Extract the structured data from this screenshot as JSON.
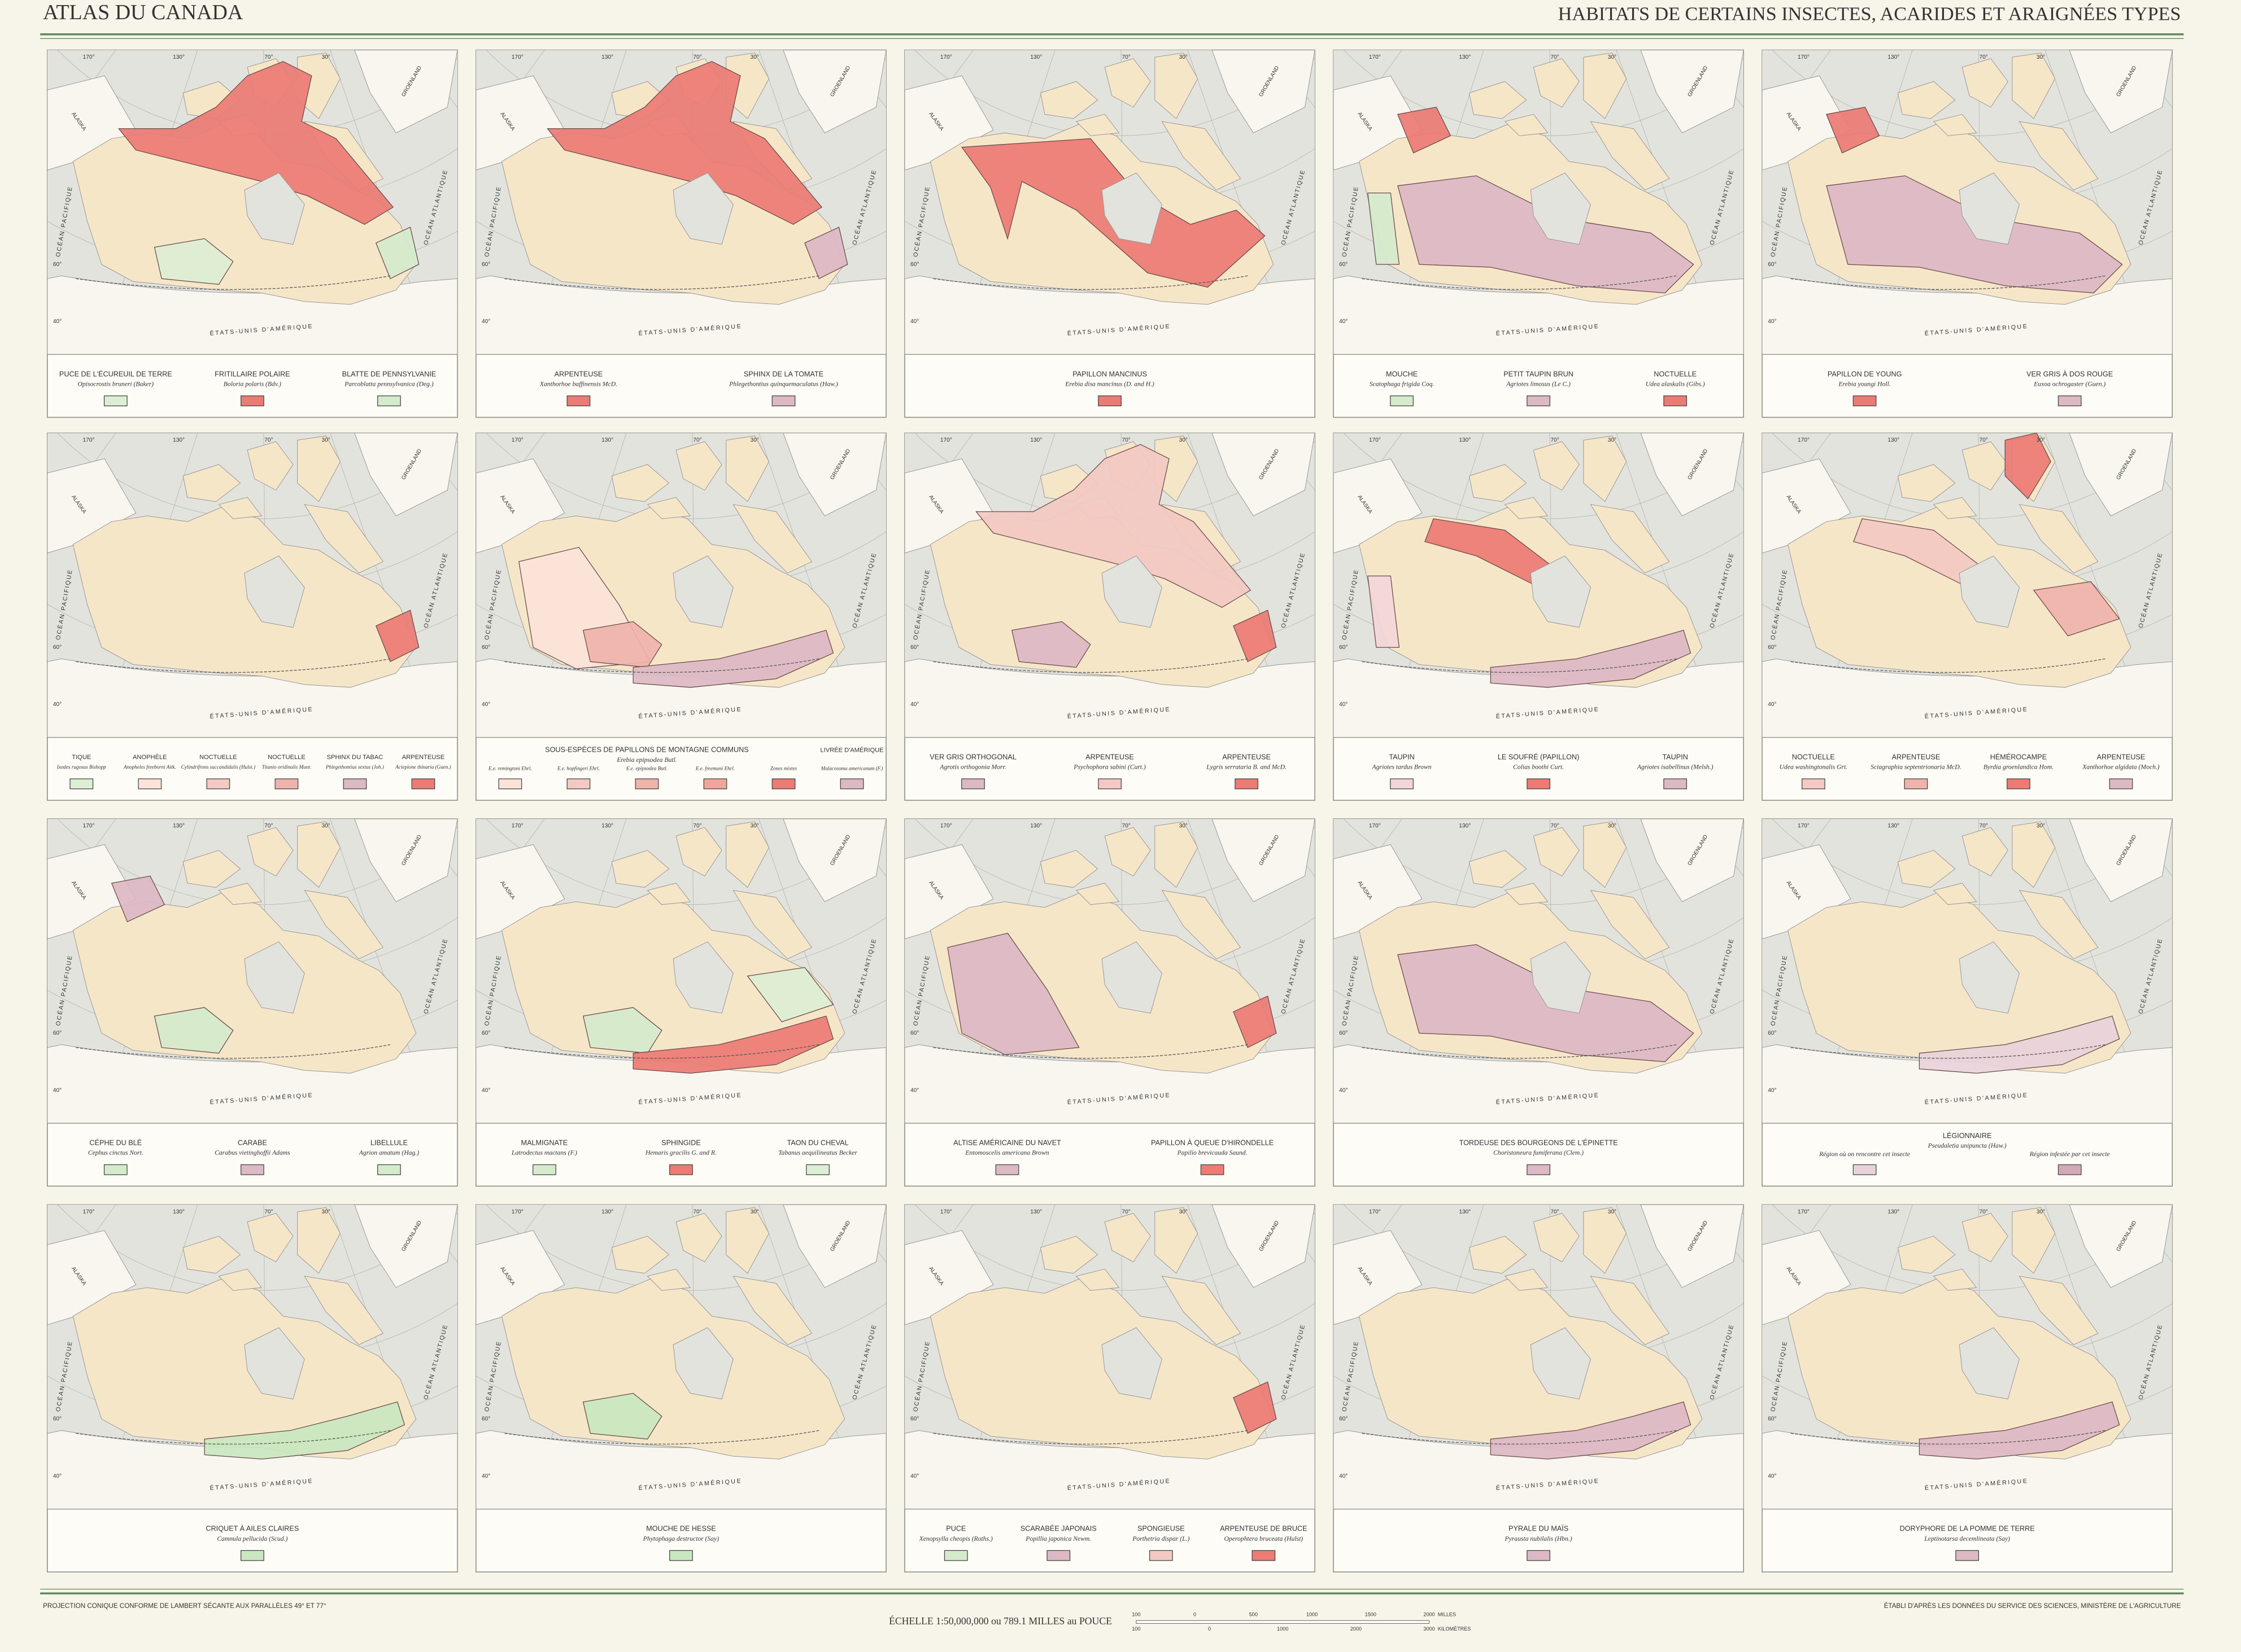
{
  "header": {
    "left": "ATLAS DU CANADA",
    "title": "HABITATS DE CERTAINS INSECTES, ACARIDES ET ARAIGNÉES TYPES"
  },
  "map_labels": {
    "pacific": "OCÉAN PACIFIQUE",
    "atlantic": "OCÉAN ATLANTIQUE",
    "usa": "ÉTATS-UNIS D'AMÉRIQUE",
    "greenland": "GROENLAND",
    "alaska": "ALASKA",
    "meridians": [
      "170°",
      "130°",
      "70°",
      "30°"
    ],
    "parallels": [
      "60°",
      "40°"
    ]
  },
  "panels": [
    {
      "entries": [
        {
          "name": "PUCE DE L'ÉCUREUIL DE TERRE",
          "latin": "Opisocrostis bruneri (Baker)",
          "color": "#dcefd4"
        },
        {
          "name": "FRITILLAIRE POLAIRE",
          "latin": "Boloria polaris (Bdv.)",
          "color": "#ec7b74"
        },
        {
          "name": "BLATTE DE PENNSYLVANIE",
          "latin": "Parcoblatta pennsylvanica (Deg.)",
          "color": "#d4ebcc"
        }
      ]
    },
    {
      "entries": [
        {
          "name": "ARPENTEUSE",
          "latin": "Xanthorhoe baffinensis McD.",
          "color": "#ec7b74"
        },
        {
          "name": "SPHINX DE LA TOMATE",
          "latin": "Phlegethontius quinquemaculatus (Haw.)",
          "color": "#dcb9c4"
        }
      ]
    },
    {
      "entries": [
        {
          "name": "PAPILLON MANCINUS",
          "latin": "Erebia disa mancinus (D. and H.)",
          "color": "#ec7b74"
        }
      ]
    },
    {
      "entries": [
        {
          "name": "MOUCHE",
          "latin": "Scatophaga frigida Coq.",
          "color": "#d4ebcc"
        },
        {
          "name": "PETIT TAUPIN BRUN",
          "latin": "Agriotes limosus (Le C.)",
          "color": "#dcb9c4"
        },
        {
          "name": "NOCTUELLE",
          "latin": "Udea alaskalis (Gibs.)",
          "color": "#ec7b74"
        }
      ]
    },
    {
      "entries": [
        {
          "name": "PAPILLON DE YOUNG",
          "latin": "Erebia youngi Holl.",
          "color": "#ec7b74"
        },
        {
          "name": "VER GRIS À DOS ROUGE",
          "latin": "Euxoa ochrogaster (Guen.)",
          "color": "#dcb9c4"
        }
      ]
    },
    {
      "entries": [
        {
          "name": "TIQUE",
          "latin": "Ixodes rugosus Bishopp",
          "color": "#dcefd4"
        },
        {
          "name": "ANOPHÈLE",
          "latin": "Anopheles freeborni Aitk.",
          "color": "#fbe3d8"
        },
        {
          "name": "NOCTUELLE",
          "latin": "Cylindrifrons succandidalis (Hulst.)",
          "color": "#f3c9c2"
        },
        {
          "name": "NOCTUELLE",
          "latin": "Titanio oridinalis Munr.",
          "color": "#efb3ab"
        },
        {
          "name": "SPHINX DU TABAC",
          "latin": "Phlegethontius sextus (Joh.)",
          "color": "#dcb9c4"
        },
        {
          "name": "ARPENTEUSE",
          "latin": "Aciepione thinaria (Guen.)",
          "color": "#ec7b74"
        }
      ]
    },
    {
      "heading": {
        "name": "SOUS-ESPÈCES DE PAPILLONS DE MONTAGNE COMMUNS",
        "latin": "Erebia epipsodea Butl."
      },
      "entries": [
        {
          "latin": "E.e. remingtoni Ehrl.",
          "color": "#fbe3d8"
        },
        {
          "latin": "E.e. hopfingeri Ehrl.",
          "color": "#f3c9c2"
        },
        {
          "latin": "E.e. epipsodea Butl.",
          "color": "#efb3ab"
        },
        {
          "latin": "E.e. freemani Ehrl.",
          "color": "#f0a59c"
        },
        {
          "latin": "Zones mixtes",
          "color": "#ec7b74"
        },
        {
          "name": "LIVRÉE D'AMÉRIQUE",
          "latin": "Malacosoma americanum (F.)",
          "color": "#dcb9c4"
        }
      ]
    },
    {
      "entries": [
        {
          "name": "VER GRIS ORTHOGONAL",
          "latin": "Agrotis orthogonia Morr.",
          "color": "#dcb9c4"
        },
        {
          "name": "ARPENTEUSE",
          "latin": "Psychophora sabini (Curt.)",
          "color": "#f3c9c2"
        },
        {
          "name": "ARPENTEUSE",
          "latin": "Lygris serrataria B. and McD.",
          "color": "#ec7b74"
        }
      ]
    },
    {
      "entries": [
        {
          "name": "TAUPIN",
          "latin": "Agriotes tardus Brown",
          "color": "#f3d6d8"
        },
        {
          "name": "LE SOUFRÉ (PAPILLON)",
          "latin": "Colias boothi Curt.",
          "color": "#ec7b74"
        },
        {
          "name": "TAUPIN",
          "latin": "Agriotes isabellinus (Melsh.)",
          "color": "#dcb9c4"
        }
      ]
    },
    {
      "entries": [
        {
          "name": "NOCTUELLE",
          "latin": "Udea washingtonalis Grt.",
          "color": "#f3c9c2"
        },
        {
          "name": "ARPENTEUSE",
          "latin": "Sciagraphia septentrionaria McD.",
          "color": "#efb3ab"
        },
        {
          "name": "HÉMÉROCAMPE",
          "latin": "Byrdia groenlandica Hom.",
          "color": "#ec7b74"
        },
        {
          "name": "ARPENTEUSE",
          "latin": "Xanthorhoe algidata (Moch.)",
          "color": "#dcb9c4"
        }
      ]
    },
    {
      "entries": [
        {
          "name": "CÉPHE DU BLÉ",
          "latin": "Cephus cinctus Nort.",
          "color": "#d4ebcc"
        },
        {
          "name": "CARABE",
          "latin": "Carabus vietinghoffii Adams",
          "color": "#dcb9c4"
        },
        {
          "name": "LIBELLULE",
          "latin": "Agrion amatum (Hag.)",
          "color": "#d4ebcc"
        }
      ]
    },
    {
      "entries": [
        {
          "name": "MALMIGNATE",
          "latin": "Latrodectus mactans (F.)",
          "color": "#d4ebcc"
        },
        {
          "name": "SPHINGIDE",
          "latin": "Hemaris gracilis G. and R.",
          "color": "#ec7b74"
        },
        {
          "name": "TAON DU CHEVAL",
          "latin": "Tabanus aequilineatus Becker",
          "color": "#dcefd4"
        }
      ]
    },
    {
      "entries": [
        {
          "name": "ALTISE AMÉRICAINE DU NAVET",
          "latin": "Entomoscelis americana Brown",
          "color": "#dcb9c4"
        },
        {
          "name": "PAPILLON À QUEUE D'HIRONDELLE",
          "latin": "Papilio brevicauda Saund.",
          "color": "#ec7b74"
        }
      ]
    },
    {
      "entries": [
        {
          "name": "TORDEUSE DES BOURGEONS DE L'ÉPINETTE",
          "latin": "Choristoneura fumiferana (Clem.)",
          "color": "#dcb9c4"
        }
      ]
    },
    {
      "heading": {
        "name": "LÉGIONNAIRE",
        "latin": "Pseudaletia unipuncta (Haw.)"
      },
      "entries": [
        {
          "latin": "Région où on rencontre cet insecte",
          "color": "#e8d3da"
        },
        {
          "latin": "Région infestée par cet insecte",
          "color": "#d2a9b7"
        }
      ]
    },
    {
      "entries": [
        {
          "name": "CRIQUET À AILES CLAIRES",
          "latin": "Camnula pellucida (Scud.)",
          "color": "#c9e7c0"
        }
      ]
    },
    {
      "entries": [
        {
          "name": "MOUCHE DE HESSE",
          "latin": "Phytophaga destructor (Say)",
          "color": "#c9e7c0"
        }
      ]
    },
    {
      "entries": [
        {
          "name": "PUCE",
          "latin": "Xenopsylla cheopis (Roths.)",
          "color": "#d4ebcc"
        },
        {
          "name": "SCARABÉE JAPONAIS",
          "latin": "Popillia japonica Newm.",
          "color": "#dcb9c4"
        },
        {
          "name": "SPONGIEUSE",
          "latin": "Porthetria dispar (L.)",
          "color": "#f3c9c2"
        },
        {
          "name": "ARPENTEUSE DE BRUCE",
          "latin": "Operophtera bruceata (Hulst)",
          "color": "#ec7b74"
        }
      ]
    },
    {
      "entries": [
        {
          "name": "PYRALE DU MAÏS",
          "latin": "Pyrausta nubilalis (Hbn.)",
          "color": "#dcb9c4"
        }
      ]
    },
    {
      "entries": [
        {
          "name": "DORYPHORE DE LA POMME DE TERRE",
          "latin": "Leptinotarsa decemlineata (Say)",
          "color": "#dcb9c4"
        }
      ]
    }
  ],
  "footer": {
    "projection": "PROJECTION CONIQUE CONFORME DE LAMBERT SÉCANTE AUX PARALLÈLES 49° ET 77°",
    "scale": "ÉCHELLE 1:50,000,000 ou 789.1 MILLES au POUCE",
    "source": "ÉTABLI D'APRÈS LES DONNÉES DU SERVICE DES SCIENCES, MINISTÈRE DE L'AGRICULTURE",
    "miles_label": "MILLES",
    "km_label": "KILOMÈTRES",
    "miles_ticks": [
      "100",
      "0",
      "500",
      "1000",
      "1500",
      "2000"
    ],
    "km_ticks": [
      "100",
      "0",
      "1000",
      "2000",
      "3000"
    ]
  }
}
